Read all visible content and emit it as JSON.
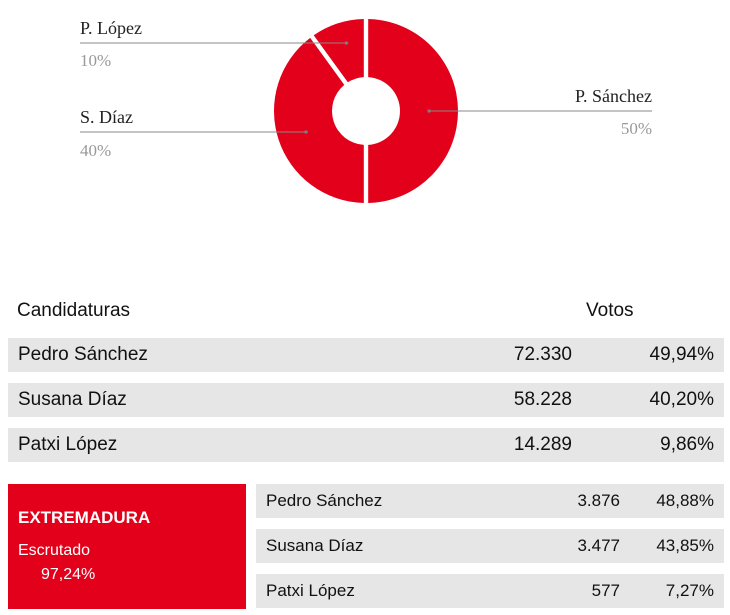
{
  "chart_data": {
    "type": "pie",
    "style": "donut",
    "slices": [
      {
        "label": "P. Sánchez",
        "value_label": "50%",
        "value": 50
      },
      {
        "label": "S. Díaz",
        "value_label": "40%",
        "value": 40
      },
      {
        "label": "P. López",
        "value_label": "10%",
        "value": 10
      }
    ],
    "colors": {
      "slice": "#e2001a",
      "leader_line": "#888888",
      "label_pct": "#999999"
    }
  },
  "table": {
    "headers": {
      "candidates": "Candidaturas",
      "votes": "Votos"
    },
    "rows": [
      {
        "name": "Pedro Sánchez",
        "votes": "72.330",
        "pct": "49,94%"
      },
      {
        "name": "Susana Díaz",
        "votes": "58.228",
        "pct": "40,20%"
      },
      {
        "name": "Patxi López",
        "votes": "14.289",
        "pct": "9,86%"
      }
    ]
  },
  "region": {
    "name": "EXTREMADURA",
    "status_label": "Escrutado",
    "status_pct": "97,24%",
    "rows": [
      {
        "name": "Pedro Sánchez",
        "votes": "3.876",
        "pct": "48,88%"
      },
      {
        "name": "Susana Díaz",
        "votes": "3.477",
        "pct": "43,85%"
      },
      {
        "name": "Patxi López",
        "votes": "577",
        "pct": "7,27%"
      }
    ],
    "color": "#e2001a"
  }
}
